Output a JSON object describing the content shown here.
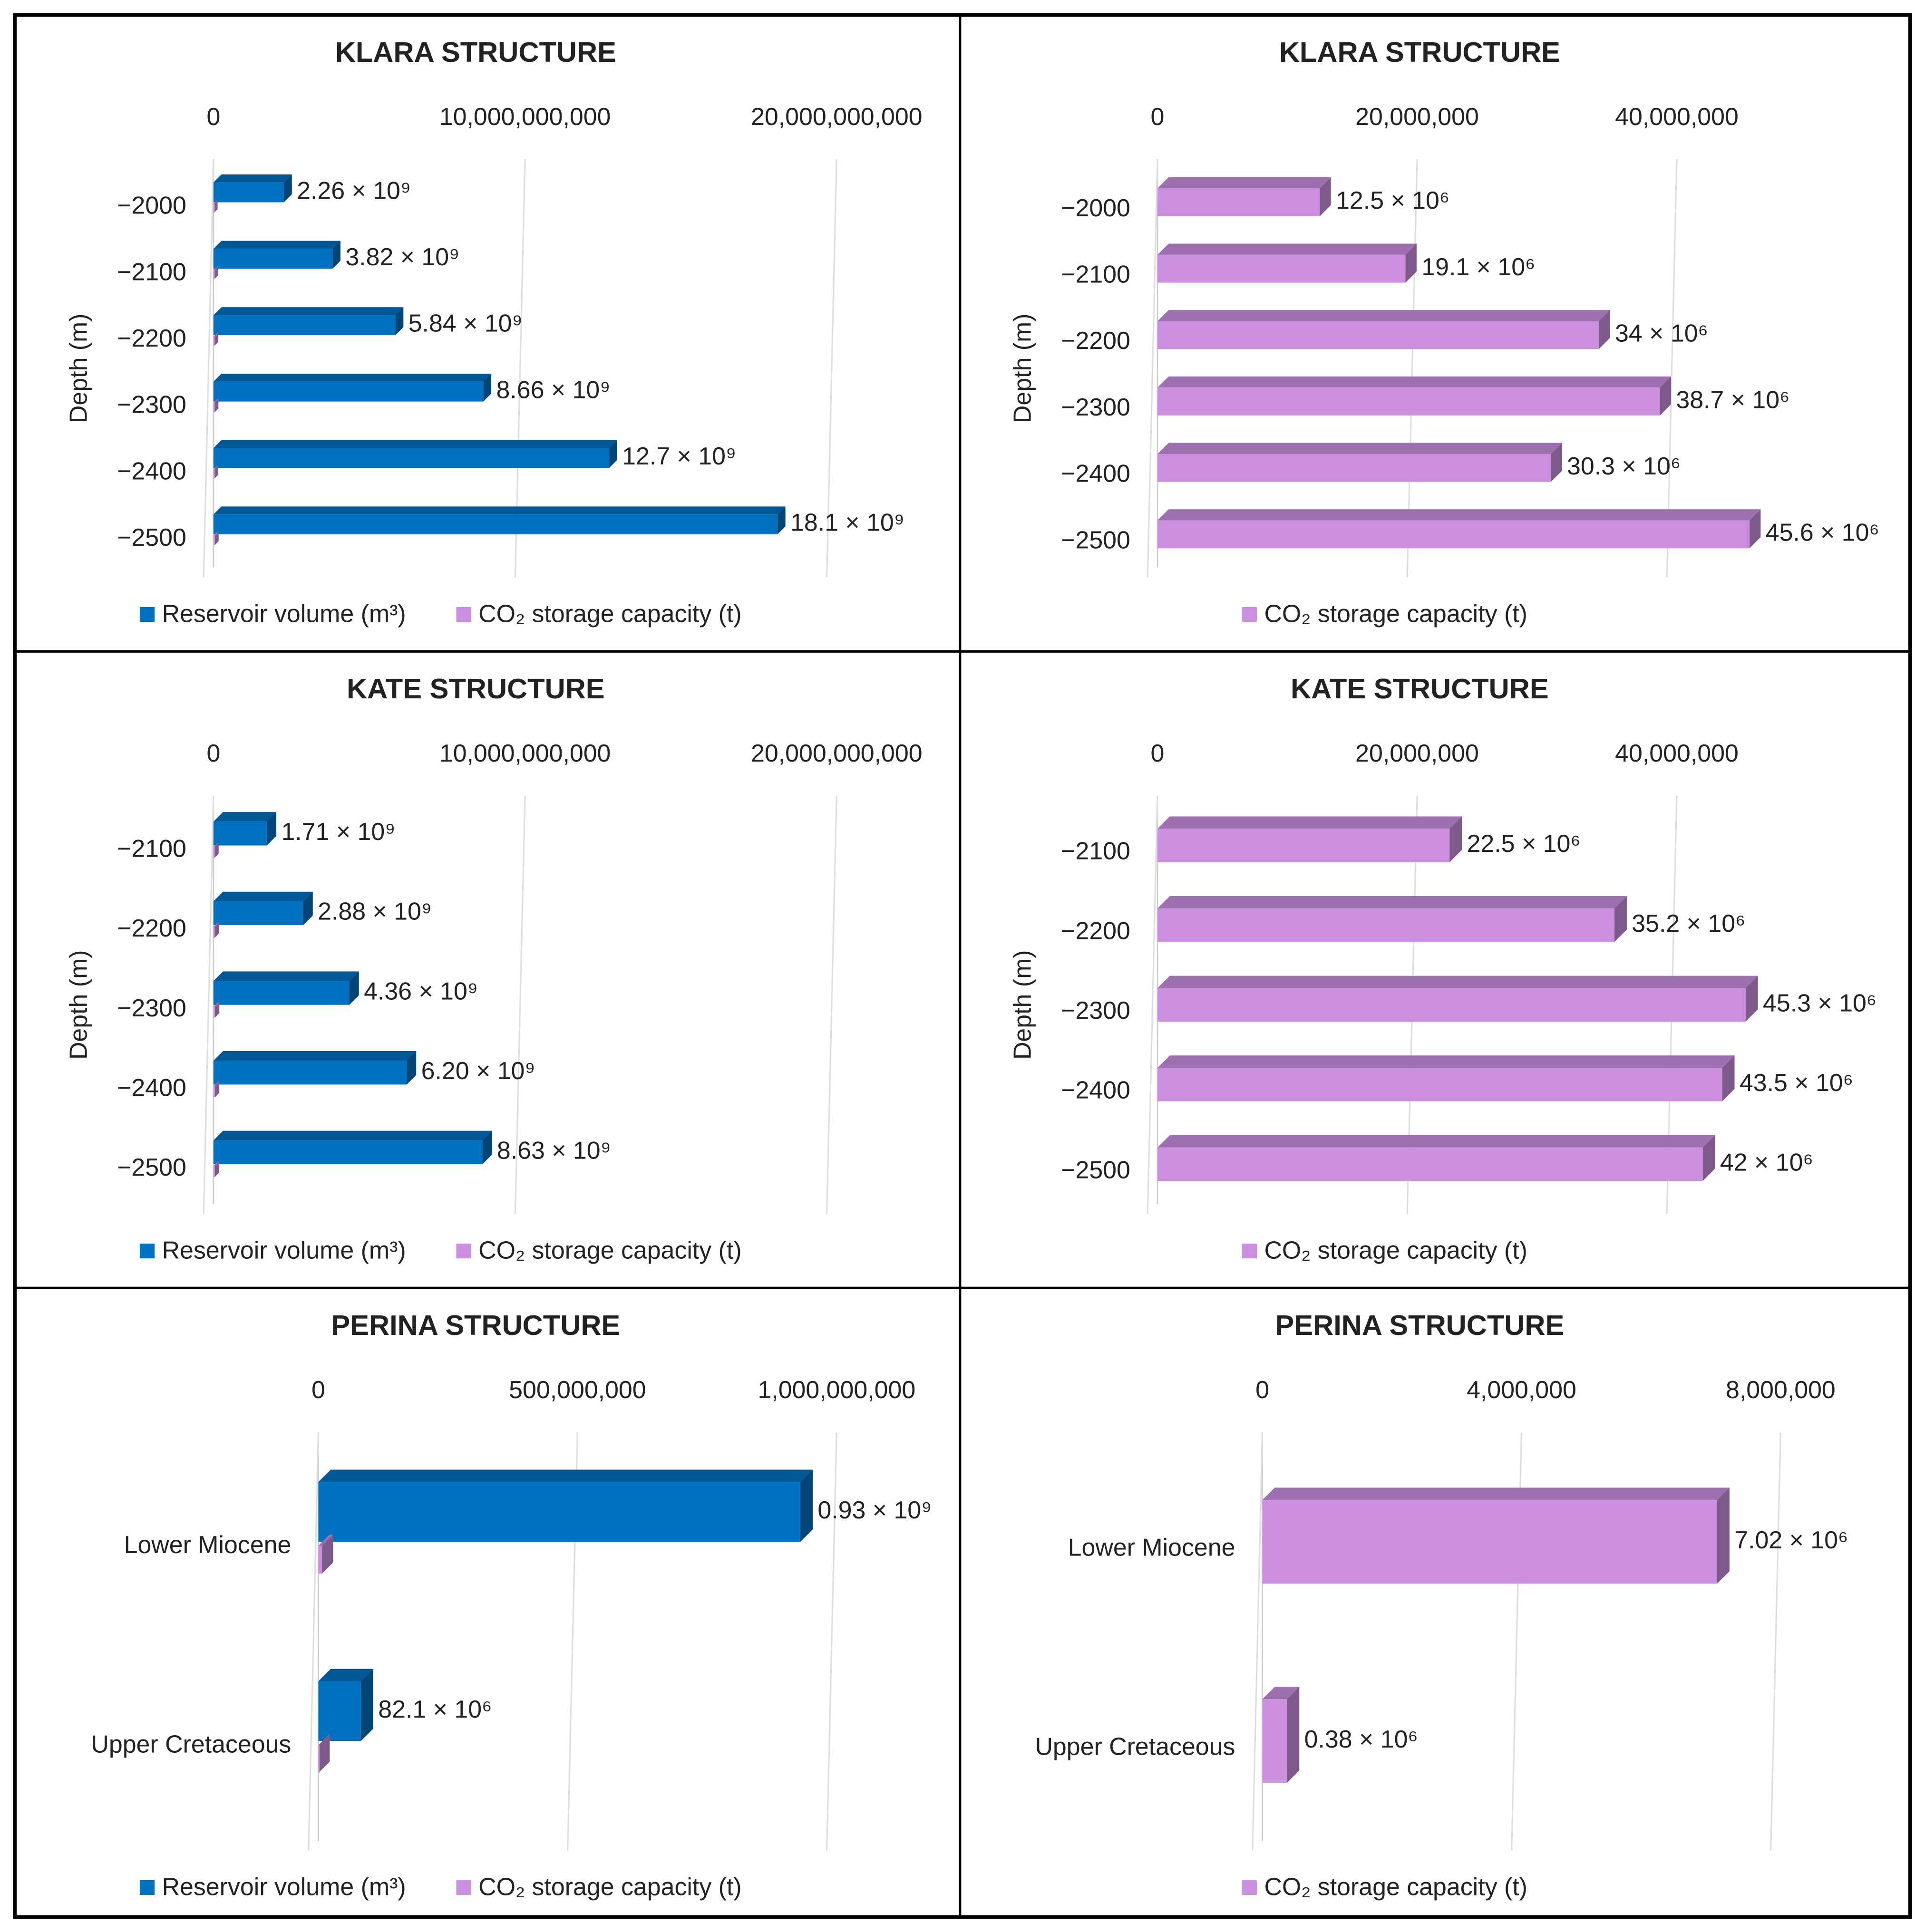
{
  "chart_data": [
    {
      "type": "bar",
      "orientation": "horizontal",
      "title": "KLARA STRUCTURE",
      "y_label": "Depth (m)",
      "categories": [
        "−2000",
        "−2100",
        "−2200",
        "−2300",
        "−2400",
        "−2500"
      ],
      "series": [
        {
          "name": "Reservoir volume (m³)",
          "color": "#0070c0",
          "values": [
            2260000000,
            3820000000,
            5840000000,
            8660000000,
            12700000000,
            18100000000
          ],
          "value_labels": [
            "2.26 × 10⁹",
            "3.82 × 10⁹",
            "5.84 × 10⁹",
            "8.66 × 10⁹",
            "12.7 × 10⁹",
            "18.1 × 10⁹"
          ]
        },
        {
          "name": "CO₂ storage capacity (t)",
          "color": "#cc8fe0",
          "values": [
            12500000,
            19100000,
            34000000,
            38700000,
            30300000,
            45600000
          ]
        }
      ],
      "xlim": [
        0,
        20000000000
      ],
      "xticks": [
        0,
        {
          "value": 10000000000,
          "label": "10,000,000,000"
        },
        {
          "value": 20000000000,
          "label": "20,000,000,000"
        }
      ],
      "grid": true,
      "legend": "bottom"
    },
    {
      "type": "bar",
      "orientation": "horizontal",
      "title": "KLARA STRUCTURE",
      "y_label": "Depth (m)",
      "categories": [
        "−2000",
        "−2100",
        "−2200",
        "−2300",
        "−2400",
        "−2500"
      ],
      "series": [
        {
          "name": "CO₂ storage capacity (t)",
          "color": "#cc8fe0",
          "values": [
            12500000,
            19100000,
            34000000,
            38700000,
            30300000,
            45600000
          ],
          "value_labels": [
            "12.5 × 10⁶",
            "19.1 × 10⁶",
            "34 × 10⁶",
            "38.7 × 10⁶",
            "30.3 × 10⁶",
            "45.6 × 10⁶"
          ]
        }
      ],
      "xlim": [
        0,
        48000000
      ],
      "xticks": [
        0,
        {
          "value": 20000000,
          "label": "20,000,000"
        },
        {
          "value": 40000000,
          "label": "40,000,000"
        }
      ],
      "grid": true,
      "legend": "bottom"
    },
    {
      "type": "bar",
      "orientation": "horizontal",
      "title": "KATE STRUCTURE",
      "y_label": "Depth (m)",
      "categories": [
        "−2100",
        "−2200",
        "−2300",
        "−2400",
        "−2500"
      ],
      "series": [
        {
          "name": "Reservoir volume (m³)",
          "color": "#0070c0",
          "values": [
            1710000000,
            2880000000,
            4360000000,
            6200000000,
            8630000000
          ],
          "value_labels": [
            "1.71 × 10⁹",
            "2.88 × 10⁹",
            "4.36 × 10⁹",
            "6.20 × 10⁹",
            "8.63 × 10⁹"
          ]
        },
        {
          "name": "CO₂ storage capacity (t)",
          "color": "#cc8fe0",
          "values": [
            22500000,
            35200000,
            45300000,
            43500000,
            42000000
          ]
        }
      ],
      "xlim": [
        0,
        20000000000
      ],
      "xticks": [
        0,
        {
          "value": 10000000000,
          "label": "10,000,000,000"
        },
        {
          "value": 20000000000,
          "label": "20,000,000,000"
        }
      ],
      "grid": true,
      "legend": "bottom"
    },
    {
      "type": "bar",
      "orientation": "horizontal",
      "title": "KATE STRUCTURE",
      "y_label": "Depth (m)",
      "categories": [
        "−2100",
        "−2200",
        "−2300",
        "−2400",
        "−2500"
      ],
      "series": [
        {
          "name": "CO₂ storage capacity (t)",
          "color": "#cc8fe0",
          "values": [
            22500000,
            35200000,
            45300000,
            43500000,
            42000000
          ],
          "value_labels": [
            "22.5 × 10⁶",
            "35.2 × 10⁶",
            "45.3 × 10⁶",
            "43.5 × 10⁶",
            "42 × 10⁶"
          ]
        }
      ],
      "xlim": [
        0,
        48000000
      ],
      "xticks": [
        0,
        {
          "value": 20000000,
          "label": "20,000,000"
        },
        {
          "value": 40000000,
          "label": "40,000,000"
        }
      ],
      "grid": true,
      "legend": "bottom"
    },
    {
      "type": "bar",
      "orientation": "horizontal",
      "title": "PERINA STRUCTURE",
      "categories": [
        "Lower Miocene",
        "Upper Cretaceous"
      ],
      "series": [
        {
          "name": "Reservoir volume (m³)",
          "color": "#0070c0",
          "values": [
            930000000,
            82100000
          ],
          "value_labels": [
            "0.93 × 10⁹",
            "82.1 × 10⁶"
          ]
        },
        {
          "name": "CO₂ storage capacity (t)",
          "color": "#cc8fe0",
          "values": [
            7020000,
            380000
          ]
        }
      ],
      "xlim": [
        0,
        1000000000
      ],
      "xticks": [
        0,
        {
          "value": 500000000,
          "label": "500,000,000"
        },
        {
          "value": 1000000000,
          "label": "1,000,000,000"
        }
      ],
      "grid": true,
      "legend": "bottom"
    },
    {
      "type": "bar",
      "orientation": "horizontal",
      "title": "PERINA STRUCTURE",
      "categories": [
        "Lower Miocene",
        "Upper Cretaceous"
      ],
      "series": [
        {
          "name": "CO₂ storage capacity (t)",
          "color": "#cc8fe0",
          "values": [
            7020000,
            380000
          ],
          "value_labels": [
            "7.02 × 10⁶",
            "0.38 × 10⁶"
          ]
        }
      ],
      "xlim": [
        0,
        8000000
      ],
      "xticks": [
        0,
        {
          "value": 4000000,
          "label": "4,000,000"
        },
        {
          "value": 8000000,
          "label": "8,000,000"
        }
      ],
      "grid": true,
      "legend": "bottom"
    }
  ]
}
